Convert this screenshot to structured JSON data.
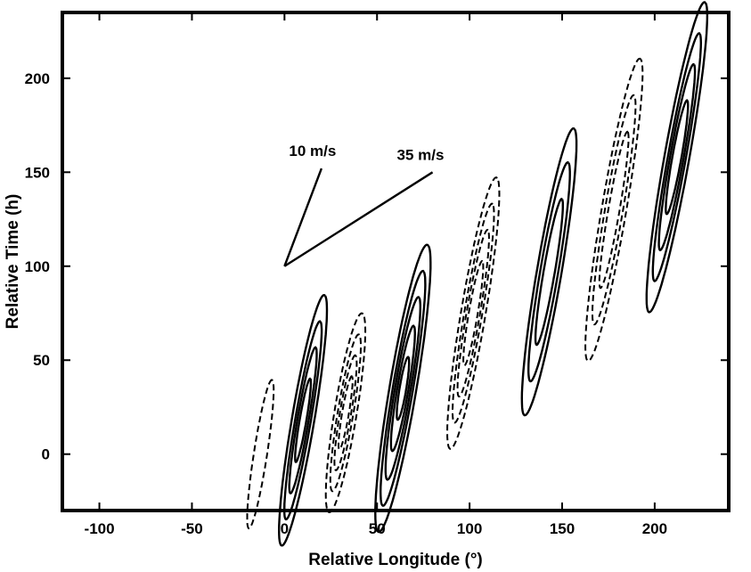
{
  "chart_data": {
    "type": "contour",
    "xlabel": "Relative Longitude (°)",
    "ylabel": "Relative Time (h)",
    "xlim": [
      -120,
      240
    ],
    "ylim": [
      -30,
      235
    ],
    "xticks": [
      -100,
      -50,
      0,
      50,
      100,
      150,
      200
    ],
    "yticks": [
      0,
      50,
      100,
      150,
      200
    ],
    "grid": false,
    "line_color": "#000000",
    "positive_contours": [
      {
        "cx": 10,
        "cy": 18,
        "angle_deg": 63,
        "half_lengths": [
          [
            48,
            10
          ],
          [
            38,
            7
          ],
          [
            28,
            5
          ],
          [
            16,
            3
          ]
        ]
      },
      {
        "cx": 64,
        "cy": 35,
        "angle_deg": 63,
        "half_lengths": [
          [
            55,
            12
          ],
          [
            45,
            9
          ],
          [
            35,
            7
          ],
          [
            24,
            5
          ],
          [
            12,
            3
          ]
        ]
      },
      {
        "cx": 143,
        "cy": 97,
        "angle_deg": 63,
        "half_lengths": [
          [
            55,
            11
          ],
          [
            42,
            8
          ],
          [
            28,
            5
          ]
        ]
      },
      {
        "cx": 212,
        "cy": 158,
        "angle_deg": 62,
        "half_lengths": [
          [
            60,
            11
          ],
          [
            48,
            8
          ],
          [
            36,
            6
          ],
          [
            22,
            4
          ]
        ]
      }
    ],
    "negative_contours": [
      {
        "cx": -13,
        "cy": 0,
        "angle_deg": 65,
        "half_lengths": [
          [
            28,
            6
          ]
        ]
      },
      {
        "cx": 33,
        "cy": 22,
        "angle_deg": 63,
        "half_lengths": [
          [
            38,
            10
          ],
          [
            30,
            7
          ],
          [
            22,
            5
          ],
          [
            14,
            3
          ]
        ]
      },
      {
        "cx": 102,
        "cy": 75,
        "angle_deg": 63,
        "half_lengths": [
          [
            52,
            11
          ],
          [
            42,
            8
          ],
          [
            32,
            6
          ],
          [
            20,
            4
          ]
        ]
      },
      {
        "cx": 178,
        "cy": 130,
        "angle_deg": 63,
        "half_lengths": [
          [
            58,
            11
          ],
          [
            44,
            8
          ],
          [
            30,
            5
          ]
        ]
      }
    ],
    "reference_lines": [
      {
        "label": "10 m/s",
        "x": [
          0,
          20
        ],
        "y": [
          100,
          152
        ]
      },
      {
        "label": "35 m/s",
        "x": [
          0,
          80
        ],
        "y": [
          100,
          150
        ]
      }
    ]
  }
}
